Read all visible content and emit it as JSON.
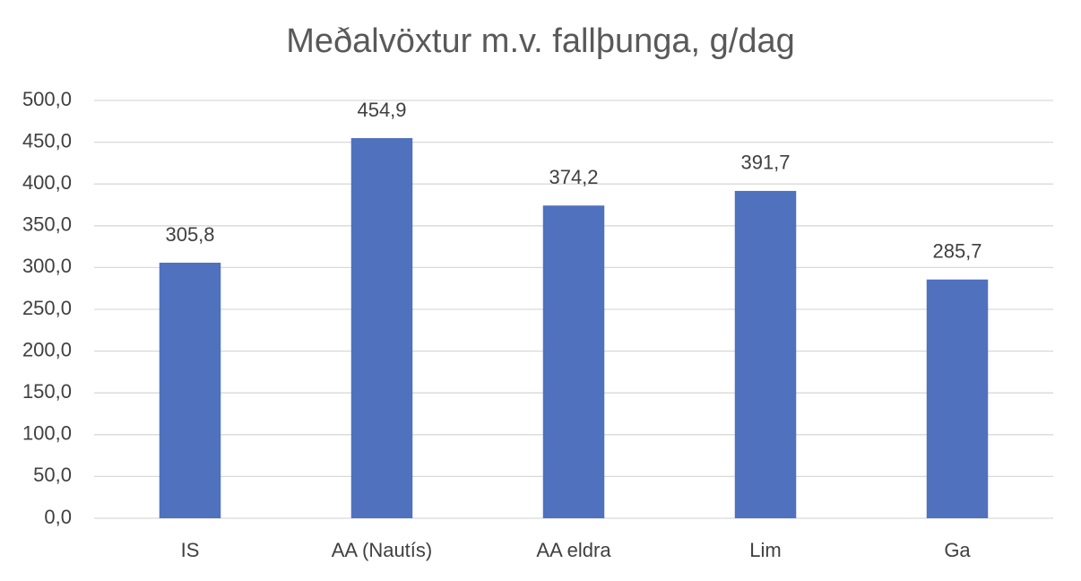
{
  "chart_data": {
    "type": "bar",
    "title": "Meðalvöxtur m.v. fallþunga, g/dag",
    "categories": [
      "IS",
      "AA (Nautís)",
      "AA eldra",
      "Lim",
      "Ga"
    ],
    "values": [
      305.8,
      454.9,
      374.2,
      391.7,
      285.7
    ],
    "value_labels": [
      "305,8",
      "454,9",
      "374,2",
      "391,7",
      "285,7"
    ],
    "color": "#4f71be",
    "ylim": [
      0,
      500
    ],
    "yticks": [
      {
        "value": 0,
        "label": "0,0"
      },
      {
        "value": 50,
        "label": "50,0"
      },
      {
        "value": 100,
        "label": "100,0"
      },
      {
        "value": 150,
        "label": "150,0"
      },
      {
        "value": 200,
        "label": "200,0"
      },
      {
        "value": 250,
        "label": "250,0"
      },
      {
        "value": 300,
        "label": "300,0"
      },
      {
        "value": 350,
        "label": "350,0"
      },
      {
        "value": 400,
        "label": "400,0"
      },
      {
        "value": 450,
        "label": "450,0"
      },
      {
        "value": 500,
        "label": "500,0"
      }
    ],
    "grid": true
  }
}
